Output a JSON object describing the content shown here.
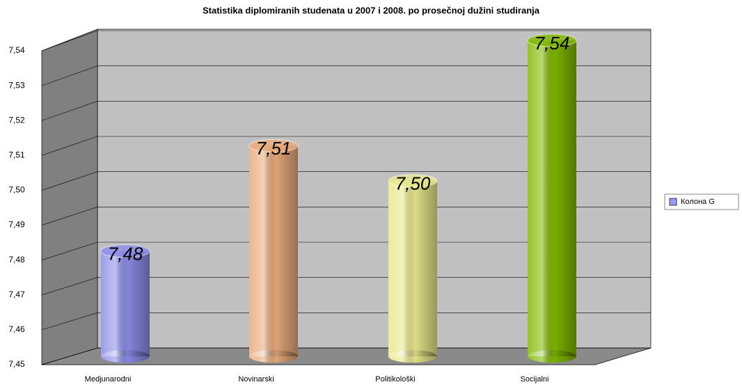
{
  "chart_data": {
    "type": "bar",
    "title": "Statistika diplomiranih studenata u 2007 i 2008. po prosečnoj dužini studiranja",
    "categories": [
      "Medjunarodni",
      "Novinarski",
      "Politikološki",
      "Socijalni"
    ],
    "series": [
      {
        "name": "Колона G",
        "color": "#9999ff",
        "colors": [
          "#8c8ce8",
          "#e8aa7c",
          "#e8e88c",
          "#80b800"
        ],
        "values": [
          7.48,
          7.51,
          7.5,
          7.54
        ],
        "value_labels": [
          "7,48",
          "7,51",
          "7,50",
          "7,54"
        ]
      }
    ],
    "ylim": [
      7.45,
      7.54
    ],
    "yticks": [
      {
        "value": 7.45,
        "label": "7,45"
      },
      {
        "value": 7.46,
        "label": "7,46"
      },
      {
        "value": 7.47,
        "label": "7,47"
      },
      {
        "value": 7.48,
        "label": "7,48"
      },
      {
        "value": 7.49,
        "label": "7,49"
      },
      {
        "value": 7.5,
        "label": "7,50"
      },
      {
        "value": 7.51,
        "label": "7,51"
      },
      {
        "value": 7.52,
        "label": "7,52"
      },
      {
        "value": 7.53,
        "label": "7,53"
      },
      {
        "value": 7.54,
        "label": "7,54"
      }
    ],
    "grid": true,
    "legend": "right"
  }
}
